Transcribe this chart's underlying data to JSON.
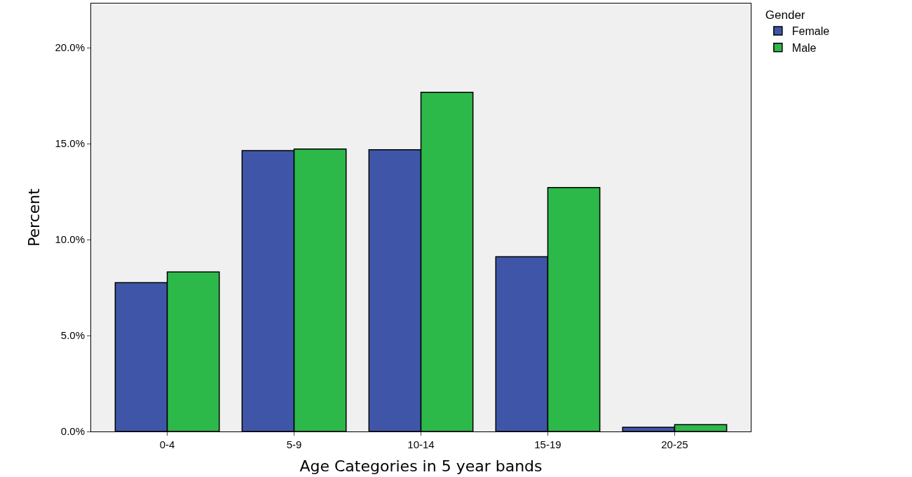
{
  "chart_data": {
    "type": "bar",
    "xlabel": "Age Categories in 5 year bands",
    "ylabel": "Percent",
    "legend_title": "Gender",
    "legend": "top right",
    "categories": [
      "0-4",
      "5-9",
      "10-14",
      "15-19",
      "20-25"
    ],
    "series": [
      {
        "name": "Female",
        "color": "#3f56a8",
        "values": [
          7.76,
          14.64,
          14.68,
          9.11,
          0.22
        ]
      },
      {
        "name": "Male",
        "color": "#2db84a",
        "values": [
          8.31,
          14.72,
          17.67,
          12.71,
          0.36
        ]
      }
    ],
    "ylim": [
      0,
      22.3
    ],
    "yticks": [
      {
        "value": 0,
        "label": "0.0%"
      },
      {
        "value": 5,
        "label": "5.0%"
      },
      {
        "value": 10,
        "label": "10.0%"
      },
      {
        "value": 15,
        "label": "15.0%"
      },
      {
        "value": 20,
        "label": "20.0%"
      }
    ],
    "grid": false
  }
}
